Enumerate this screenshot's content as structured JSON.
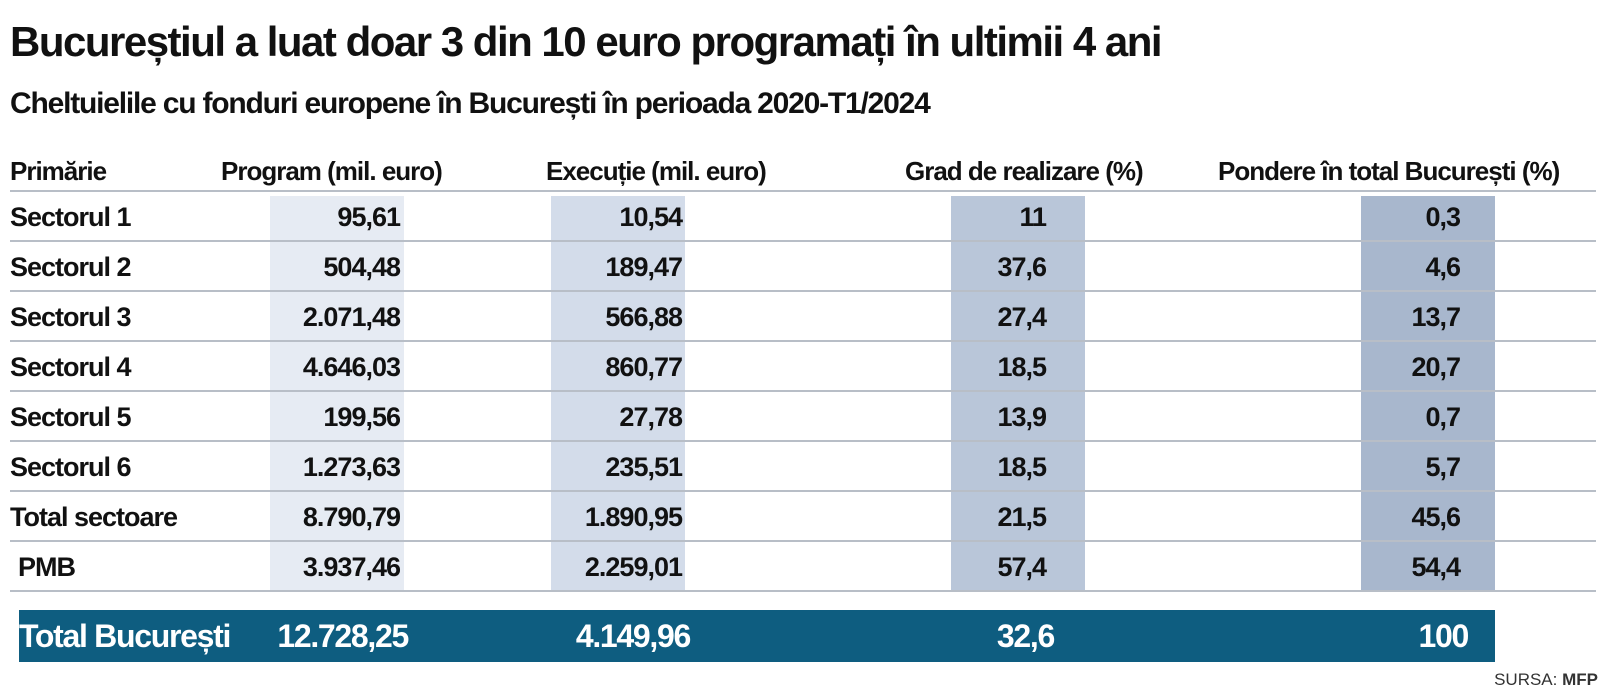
{
  "title": "Bucureștiul a luat doar 3 din 10 euro programați în ultimii 4 ani",
  "subtitle": "Cheltuielile cu fonduri europene în București în perioada 2020-T1/2024",
  "table": {
    "headers": [
      "Primărie",
      "Program (mil. euro)",
      "Execuție (mil. euro)",
      "Grad de realizare (%)",
      "Pondere în total București (%)"
    ],
    "rows": [
      {
        "name": "Sectorul 1",
        "program": "95,61",
        "executie": "10,54",
        "grad": "11",
        "pondere": "0,3"
      },
      {
        "name": "Sectorul 2",
        "program": "504,48",
        "executie": "189,47",
        "grad": "37,6",
        "pondere": "4,6"
      },
      {
        "name": "Sectorul 3",
        "program": "2.071,48",
        "executie": "566,88",
        "grad": "27,4",
        "pondere": "13,7"
      },
      {
        "name": "Sectorul 4",
        "program": "4.646,03",
        "executie": "860,77",
        "grad": "18,5",
        "pondere": "20,7"
      },
      {
        "name": "Sectorul 5",
        "program": "199,56",
        "executie": "27,78",
        "grad": "13,9",
        "pondere": "0,7"
      },
      {
        "name": "Sectorul 6",
        "program": "1.273,63",
        "executie": "235,51",
        "grad": "18,5",
        "pondere": "5,7"
      },
      {
        "name": "Total sectoare",
        "program": "8.790,79",
        "executie": "1.890,95",
        "grad": "21,5",
        "pondere": "45,6"
      },
      {
        "name": "PMB",
        "program": "3.937,46",
        "executie": "2.259,01",
        "grad": "57,4",
        "pondere": "54,4"
      }
    ],
    "total": {
      "name": "Total București",
      "program": "12.728,25",
      "executie": "4.149,96",
      "grad": "32,6",
      "pondere": "100"
    }
  },
  "source": {
    "label": "SURSA:",
    "value": "MFP"
  },
  "colors": {
    "total_row_bg": "#0e5d80",
    "band_program": "#e6ebf3",
    "band_executie": "#d3dcea",
    "band_grad": "#b9c6d9",
    "band_pondere": "#a8b7cd"
  }
}
